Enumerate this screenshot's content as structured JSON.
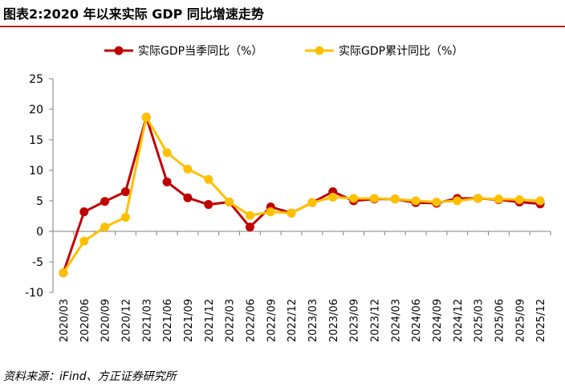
{
  "header": {
    "title": "图表2:2020 年以来实际 GDP 同比增速走势"
  },
  "footer": {
    "source": "资料来源：iFind、方正证券研究所"
  },
  "chart_data": {
    "type": "line",
    "title": "图表2:2020 年以来实际 GDP 同比增速走势",
    "xlabel": "",
    "ylabel": "",
    "ylim": [
      -10,
      25
    ],
    "yticks": [
      "25",
      "20",
      "15",
      "10",
      "5",
      "0",
      "-5",
      "-10"
    ],
    "ytick_values": [
      25,
      20,
      15,
      10,
      5,
      0,
      -5,
      -10
    ],
    "legend_position": "top",
    "categories": [
      "2020/03",
      "2020/06",
      "2020/09",
      "2020/12",
      "2021/03",
      "2021/06",
      "2021/09",
      "2021/12",
      "2022/03",
      "2022/06",
      "2022/09",
      "2022/12",
      "2023/03",
      "2023/06",
      "2023/09",
      "2023/12",
      "2024/03",
      "2024/06",
      "2024/09",
      "2024/12",
      "2025/03",
      "2025/06",
      "2025/09",
      "2025/12"
    ],
    "series": [
      {
        "name": "实际GDP当季同比（%）",
        "color": "#c00000",
        "values": [
          -6.8,
          3.2,
          4.9,
          6.5,
          18.7,
          8.1,
          5.5,
          4.4,
          4.8,
          0.7,
          4.0,
          3.0,
          4.7,
          6.5,
          5.0,
          5.3,
          5.3,
          4.7,
          4.6,
          5.4,
          5.4,
          5.2,
          4.8,
          4.5
        ]
      },
      {
        "name": "实际GDP累计同比（%）",
        "color": "#ffc000",
        "values": [
          -6.8,
          -1.6,
          0.7,
          2.3,
          18.7,
          12.9,
          10.2,
          8.5,
          4.8,
          2.6,
          3.2,
          3.0,
          4.7,
          5.6,
          5.4,
          5.4,
          5.3,
          5.0,
          4.8,
          5.0,
          5.4,
          5.3,
          5.2,
          5.0
        ]
      }
    ]
  }
}
